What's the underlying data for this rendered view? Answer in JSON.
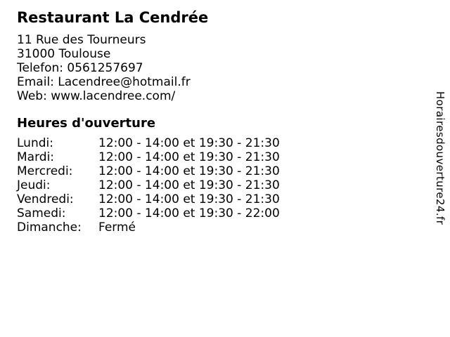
{
  "page": {
    "background_color": "#ffffff",
    "text_color": "#000000"
  },
  "business": {
    "name": "Restaurant La Cendrée",
    "contact_lines": [
      "11 Rue des Tourneurs",
      "31000 Toulouse",
      "Telefon: 0561257697",
      "Email: Lacendree@hotmail.fr",
      "Web: www.lacendree.com/"
    ]
  },
  "hours": {
    "title": "Heures d'ouverture",
    "rows": [
      {
        "day": "Lundi:",
        "time": "12:00 - 14:00 et 19:30 - 21:30"
      },
      {
        "day": "Mardi:",
        "time": "12:00 - 14:00 et 19:30 - 21:30"
      },
      {
        "day": "Mercredi:",
        "time": "12:00 - 14:00 et 19:30 - 21:30"
      },
      {
        "day": "Jeudi:",
        "time": "12:00 - 14:00 et 19:30 - 21:30"
      },
      {
        "day": "Vendredi:",
        "time": "12:00 - 14:00 et 19:30 - 21:30"
      },
      {
        "day": "Samedi:",
        "time": "12:00 - 14:00 et 19:30 - 22:00"
      },
      {
        "day": "Dimanche:",
        "time": "Fermé"
      }
    ]
  },
  "watermark": {
    "site_name": "Horairesdouverture24.fr"
  }
}
